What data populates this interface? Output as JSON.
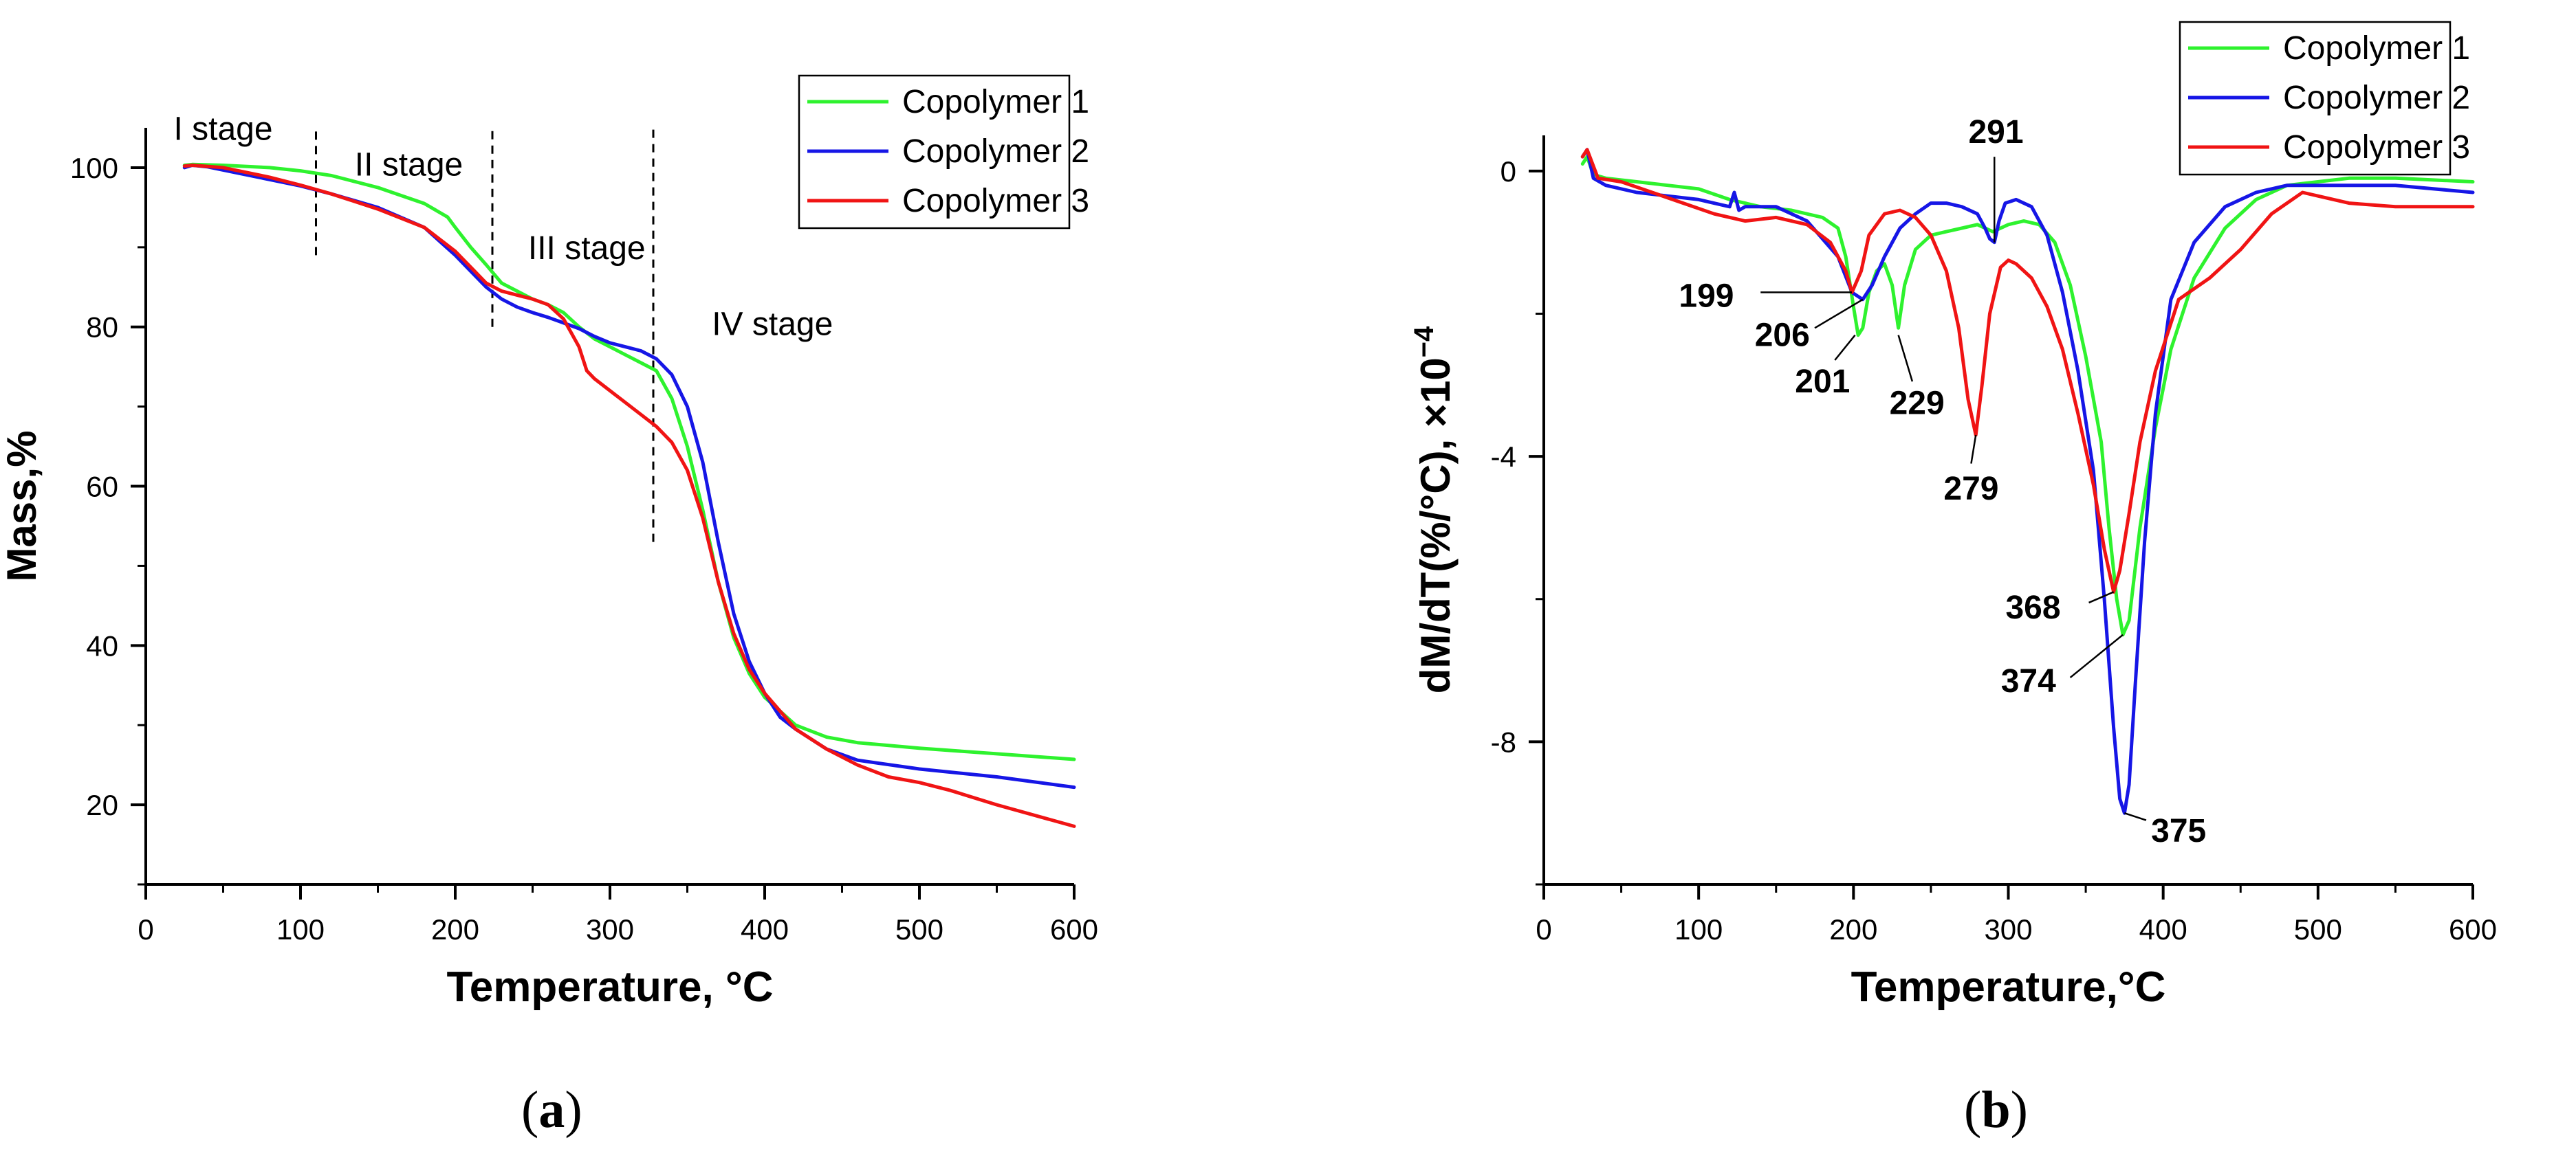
{
  "colors": {
    "copolymer1": "#2ef22e",
    "copolymer2": "#1616e6",
    "copolymer3": "#f01414",
    "axis": "#000000"
  },
  "captions": {
    "a": "a",
    "b": "b"
  },
  "chart_data": [
    {
      "id": "a",
      "type": "line",
      "xlabel": "Temperature, °C",
      "ylabel": "Mass,%",
      "xlim": [
        0,
        600
      ],
      "ylim": [
        10,
        105
      ],
      "xticks": [
        0,
        100,
        200,
        300,
        400,
        500,
        600
      ],
      "yticks": [
        20,
        40,
        60,
        80,
        100
      ],
      "legend_position": "top-right",
      "stages": [
        {
          "label": "I stage",
          "x": 50,
          "y": 103.5
        },
        {
          "label": "II stage",
          "x": 170,
          "y": 99
        },
        {
          "label": "III stage",
          "x": 285,
          "y": 88.5
        },
        {
          "label": "IV stage",
          "x": 405,
          "y": 79
        }
      ],
      "stage_boundaries": [
        {
          "x": 110,
          "y_from": 89,
          "y_to": 105
        },
        {
          "x": 224,
          "y_from": 80,
          "y_to": 105
        },
        {
          "x": 328,
          "y_from": 53,
          "y_to": 105
        }
      ],
      "series": [
        {
          "name": "Copolymer 1",
          "color_key": "copolymer1",
          "x": [
            25,
            30,
            50,
            80,
            100,
            120,
            150,
            180,
            195,
            200,
            210,
            220,
            230,
            240,
            250,
            260,
            270,
            280,
            290,
            300,
            310,
            320,
            330,
            340,
            350,
            360,
            370,
            380,
            390,
            400,
            420,
            440,
            460,
            500,
            550,
            600
          ],
          "y": [
            100.3,
            100.4,
            100.3,
            100.0,
            99.6,
            99.0,
            97.5,
            95.5,
            93.8,
            92.5,
            90.0,
            87.8,
            85.5,
            84.5,
            83.5,
            82.8,
            81.8,
            80.0,
            78.5,
            77.5,
            76.5,
            75.5,
            74.5,
            71.0,
            65.0,
            57.0,
            48.0,
            41.0,
            36.5,
            33.5,
            30.0,
            28.5,
            27.8,
            27.1,
            26.4,
            25.7
          ]
        },
        {
          "name": "Copolymer 2",
          "color_key": "copolymer2",
          "x": [
            25,
            30,
            40,
            60,
            80,
            100,
            120,
            150,
            180,
            200,
            210,
            220,
            230,
            240,
            250,
            260,
            270,
            280,
            290,
            300,
            310,
            320,
            330,
            340,
            350,
            360,
            370,
            380,
            390,
            400,
            410,
            420,
            440,
            460,
            500,
            550,
            600
          ],
          "y": [
            100.0,
            100.3,
            100.1,
            99.3,
            98.5,
            97.7,
            96.7,
            95.0,
            92.5,
            89.0,
            87.0,
            85.0,
            83.5,
            82.5,
            81.8,
            81.2,
            80.5,
            79.8,
            78.8,
            78.0,
            77.5,
            77.0,
            76.0,
            74.0,
            70.0,
            63.0,
            53.0,
            44.0,
            38.0,
            34.0,
            31.0,
            29.5,
            27.0,
            25.6,
            24.5,
            23.5,
            22.2
          ]
        },
        {
          "name": "Copolymer 3",
          "color_key": "copolymer3",
          "x": [
            25,
            30,
            50,
            80,
            100,
            120,
            150,
            180,
            200,
            210,
            220,
            230,
            240,
            250,
            260,
            270,
            280,
            285,
            290,
            300,
            310,
            320,
            330,
            340,
            350,
            360,
            370,
            380,
            390,
            400,
            420,
            440,
            460,
            480,
            500,
            520,
            550,
            600
          ],
          "y": [
            100.2,
            100.3,
            100.0,
            98.8,
            97.8,
            96.7,
            94.8,
            92.5,
            89.5,
            87.5,
            85.5,
            84.5,
            84.0,
            83.5,
            82.8,
            81.0,
            77.5,
            74.5,
            73.5,
            72.0,
            70.5,
            69.0,
            67.5,
            65.5,
            62.0,
            56.0,
            48.0,
            41.5,
            37.0,
            34.0,
            29.5,
            27.0,
            25.0,
            23.5,
            22.8,
            21.8,
            20.0,
            17.3
          ]
        }
      ]
    },
    {
      "id": "b",
      "type": "line",
      "xlabel": "Temperature,°C",
      "ylabel": "dM/dT(%/°C), ×10",
      "ylabel_exponent": "−4",
      "xlim": [
        0,
        600
      ],
      "ylim": [
        -10,
        0.5
      ],
      "xticks": [
        0,
        100,
        200,
        300,
        400,
        500,
        600
      ],
      "yticks": [
        0,
        -4,
        -8
      ],
      "ytick_labels": [
        "0",
        "-4",
        "-8"
      ],
      "legend_position": "top-right",
      "peak_labels": [
        {
          "label": "291",
          "x": 291,
          "y": -1.0,
          "tx": 292,
          "ty": 0.55,
          "hx": 291,
          "hy": 0.2
        },
        {
          "label": "199",
          "x": 199,
          "y": -1.7,
          "tx": 105,
          "ty": -1.75,
          "hx": 140,
          "hy": -1.7
        },
        {
          "label": "206",
          "x": 206,
          "y": -1.8,
          "tx": 154,
          "ty": -2.3,
          "hx": 175,
          "hy": -2.2
        },
        {
          "label": "201",
          "x": 201,
          "y": -2.3,
          "tx": 180,
          "ty": -2.95,
          "hx": 188,
          "hy": -2.65
        },
        {
          "label": "229",
          "x": 229,
          "y": -2.3,
          "tx": 241,
          "ty": -3.25,
          "hx": 238,
          "hy": -2.95
        },
        {
          "label": "279",
          "x": 279,
          "y": -3.7,
          "tx": 276,
          "ty": -4.45,
          "hx": 276,
          "hy": -4.1
        },
        {
          "label": "368",
          "x": 368,
          "y": -5.9,
          "tx": 316,
          "ty": -6.12,
          "hx": 352,
          "hy": -6.05
        },
        {
          "label": "374",
          "x": 374,
          "y": -6.5,
          "tx": 313,
          "ty": -7.15,
          "hx": 340,
          "hy": -7.1
        },
        {
          "label": "375",
          "x": 375,
          "y": -9.0,
          "tx": 410,
          "ty": -9.25,
          "hx": 389,
          "hy": -9.1
        }
      ],
      "series": [
        {
          "name": "Copolymer 1",
          "color_key": "copolymer1",
          "x": [
            25,
            28,
            32,
            40,
            60,
            80,
            100,
            120,
            140,
            160,
            180,
            190,
            195,
            200,
            203,
            206,
            210,
            215,
            220,
            225,
            229,
            233,
            240,
            250,
            260,
            270,
            280,
            290,
            300,
            310,
            320,
            330,
            340,
            350,
            360,
            365,
            370,
            374,
            378,
            385,
            395,
            405,
            420,
            440,
            460,
            480,
            500,
            520,
            550,
            600
          ],
          "y": [
            0.1,
            0.2,
            -0.05,
            -0.1,
            -0.15,
            -0.2,
            -0.25,
            -0.4,
            -0.5,
            -0.55,
            -0.65,
            -0.8,
            -1.2,
            -1.9,
            -2.3,
            -2.2,
            -1.7,
            -1.4,
            -1.3,
            -1.6,
            -2.2,
            -1.6,
            -1.1,
            -0.9,
            -0.85,
            -0.8,
            -0.75,
            -0.85,
            -0.75,
            -0.7,
            -0.75,
            -1.0,
            -1.6,
            -2.6,
            -3.8,
            -5.0,
            -6.0,
            -6.5,
            -6.3,
            -5.0,
            -3.6,
            -2.5,
            -1.5,
            -0.8,
            -0.4,
            -0.2,
            -0.15,
            -0.1,
            -0.1,
            -0.15
          ]
        },
        {
          "name": "Copolymer 2",
          "color_key": "copolymer2",
          "x": [
            25,
            28,
            32,
            40,
            60,
            80,
            100,
            120,
            123,
            126,
            130,
            150,
            170,
            190,
            199,
            206,
            212,
            220,
            230,
            240,
            250,
            260,
            270,
            280,
            285,
            288,
            291,
            294,
            298,
            305,
            315,
            325,
            335,
            345,
            355,
            362,
            368,
            372,
            375,
            378,
            382,
            388,
            395,
            405,
            420,
            440,
            460,
            480,
            500,
            550,
            600
          ],
          "y": [
            0.2,
            0.3,
            -0.1,
            -0.2,
            -0.3,
            -0.35,
            -0.4,
            -0.5,
            -0.3,
            -0.55,
            -0.5,
            -0.5,
            -0.7,
            -1.2,
            -1.7,
            -1.8,
            -1.6,
            -1.2,
            -0.8,
            -0.6,
            -0.45,
            -0.45,
            -0.5,
            -0.6,
            -0.8,
            -0.95,
            -1.0,
            -0.7,
            -0.45,
            -0.4,
            -0.5,
            -0.9,
            -1.7,
            -2.8,
            -4.2,
            -6.0,
            -7.8,
            -8.8,
            -9.0,
            -8.6,
            -7.2,
            -5.2,
            -3.4,
            -1.8,
            -1.0,
            -0.5,
            -0.3,
            -0.2,
            -0.2,
            -0.2,
            -0.3
          ]
        },
        {
          "name": "Copolymer 3",
          "color_key": "copolymer3",
          "x": [
            25,
            28,
            35,
            50,
            70,
            90,
            110,
            130,
            150,
            170,
            185,
            195,
            199,
            205,
            210,
            220,
            230,
            240,
            250,
            260,
            268,
            274,
            279,
            283,
            288,
            295,
            300,
            305,
            315,
            325,
            335,
            345,
            355,
            362,
            368,
            372,
            378,
            385,
            395,
            410,
            430,
            450,
            470,
            490,
            500,
            520,
            550,
            600
          ],
          "y": [
            0.2,
            0.3,
            -0.1,
            -0.15,
            -0.3,
            -0.45,
            -0.6,
            -0.7,
            -0.65,
            -0.75,
            -1.0,
            -1.4,
            -1.7,
            -1.4,
            -0.9,
            -0.6,
            -0.55,
            -0.65,
            -0.9,
            -1.4,
            -2.2,
            -3.2,
            -3.7,
            -3.0,
            -2.0,
            -1.35,
            -1.25,
            -1.3,
            -1.5,
            -1.9,
            -2.5,
            -3.4,
            -4.4,
            -5.3,
            -5.9,
            -5.6,
            -4.8,
            -3.8,
            -2.8,
            -1.8,
            -1.5,
            -1.1,
            -0.6,
            -0.3,
            -0.35,
            -0.45,
            -0.5,
            -0.5
          ]
        }
      ]
    }
  ]
}
